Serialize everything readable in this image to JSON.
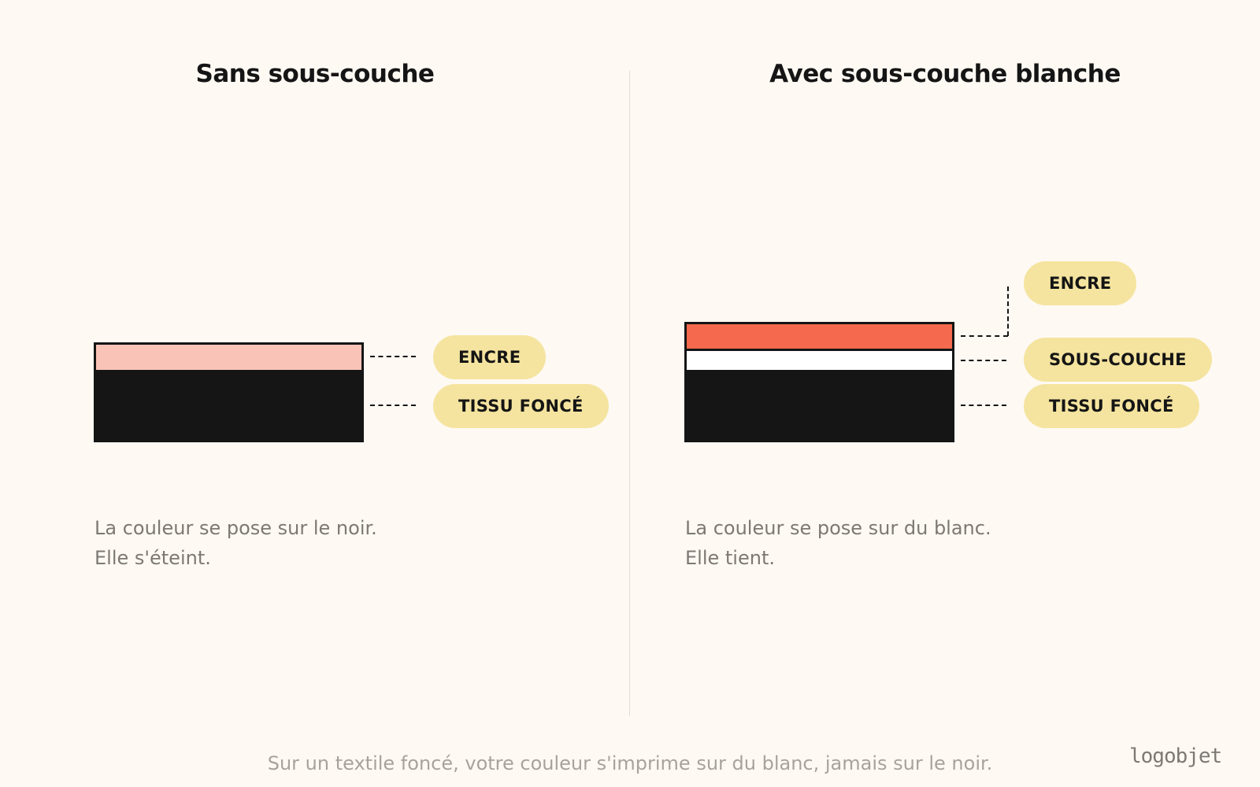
{
  "left_panel": {
    "title": "Sans sous-couche",
    "layers": [
      {
        "label": "ENCRE",
        "color": "#F9C3B8"
      },
      {
        "label": "TISSU FONCÉ",
        "color": "#151515"
      }
    ],
    "caption_line1": "La couleur se pose sur le noir.",
    "caption_line2": "Elle s'éteint."
  },
  "right_panel": {
    "title": "Avec sous-couche blanche",
    "layers": [
      {
        "label": "ENCRE",
        "color": "#F56A4E"
      },
      {
        "label": "SOUS-COUCHE",
        "color": "#FFFFFF"
      },
      {
        "label": "TISSU FONCÉ",
        "color": "#151515"
      }
    ],
    "caption_line1": "La couleur se pose sur du blanc.",
    "caption_line2": "Elle tient."
  },
  "footer_text": "Sur un textile foncé, votre couleur s'imprime sur du blanc, jamais sur le noir.",
  "logo_text": "logobjet",
  "colors": {
    "background": "#FEF9F3",
    "pill": "#F5E49F",
    "ink_left": "#F9C3B8",
    "ink_right": "#F56A4E",
    "underbase": "#FFFFFF",
    "fabric": "#151515"
  }
}
